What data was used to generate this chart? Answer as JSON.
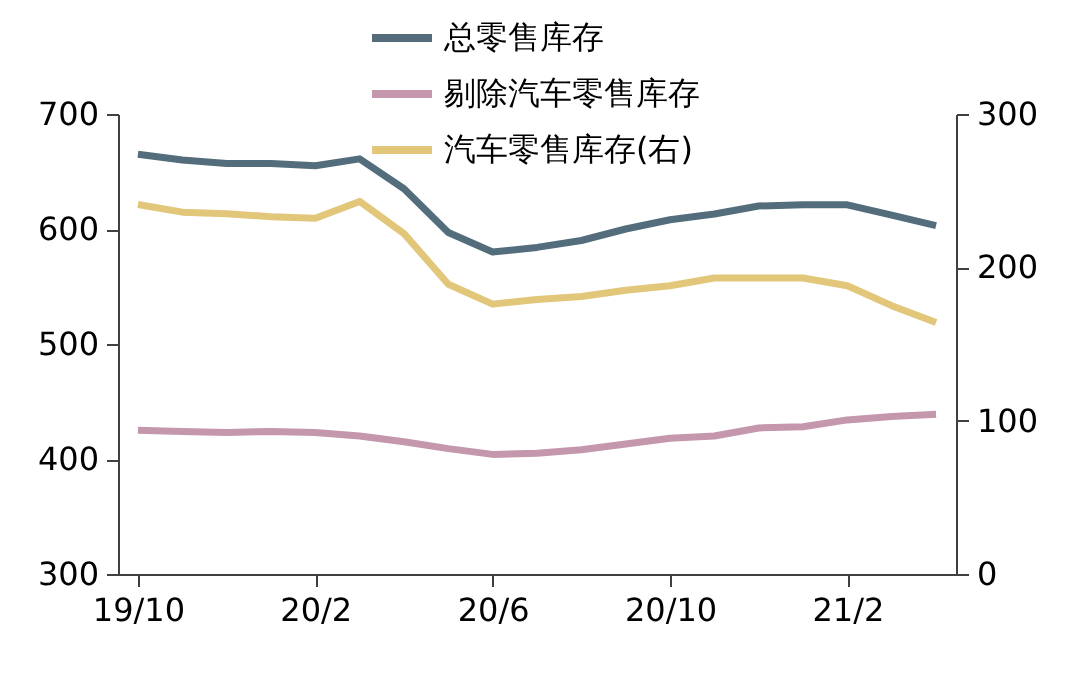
{
  "chart_data": {
    "type": "line",
    "categories": [
      "19/10",
      null,
      null,
      null,
      "20/2",
      null,
      null,
      null,
      "20/6",
      null,
      null,
      null,
      "20/10",
      null,
      null,
      null,
      "21/2",
      null,
      null
    ],
    "series": [
      {
        "name": "总零售库存",
        "color": "#536d7c",
        "values": [
          665,
          660,
          657,
          657,
          655,
          661,
          635,
          597,
          580,
          584,
          590,
          600,
          608,
          613,
          620,
          621,
          621,
          612,
          603
        ]
      },
      {
        "name": "剔除汽车零售库存",
        "color": "#c497ac",
        "values": [
          425,
          424,
          423,
          424,
          423,
          420,
          415,
          409,
          404,
          405,
          408,
          413,
          418,
          420,
          427,
          428,
          434,
          437,
          439
        ]
      },
      {
        "name": "汽车零售库存(右)",
        "color": "#e2c67a",
        "axis": "y2",
        "values": [
          241,
          236,
          235,
          233,
          232,
          243,
          222,
          189,
          176,
          179,
          181,
          185,
          188,
          193,
          193,
          193,
          188,
          175,
          164
        ]
      }
    ],
    "ylim": [
      300,
      700
    ],
    "yticks": [
      300,
      400,
      500,
      600,
      700
    ],
    "y2lim": [
      0,
      300
    ],
    "y2ticks": [
      0,
      100,
      200,
      300
    ],
    "grid": false,
    "legend": "top",
    "marker": "none",
    "line_style": "solid"
  }
}
